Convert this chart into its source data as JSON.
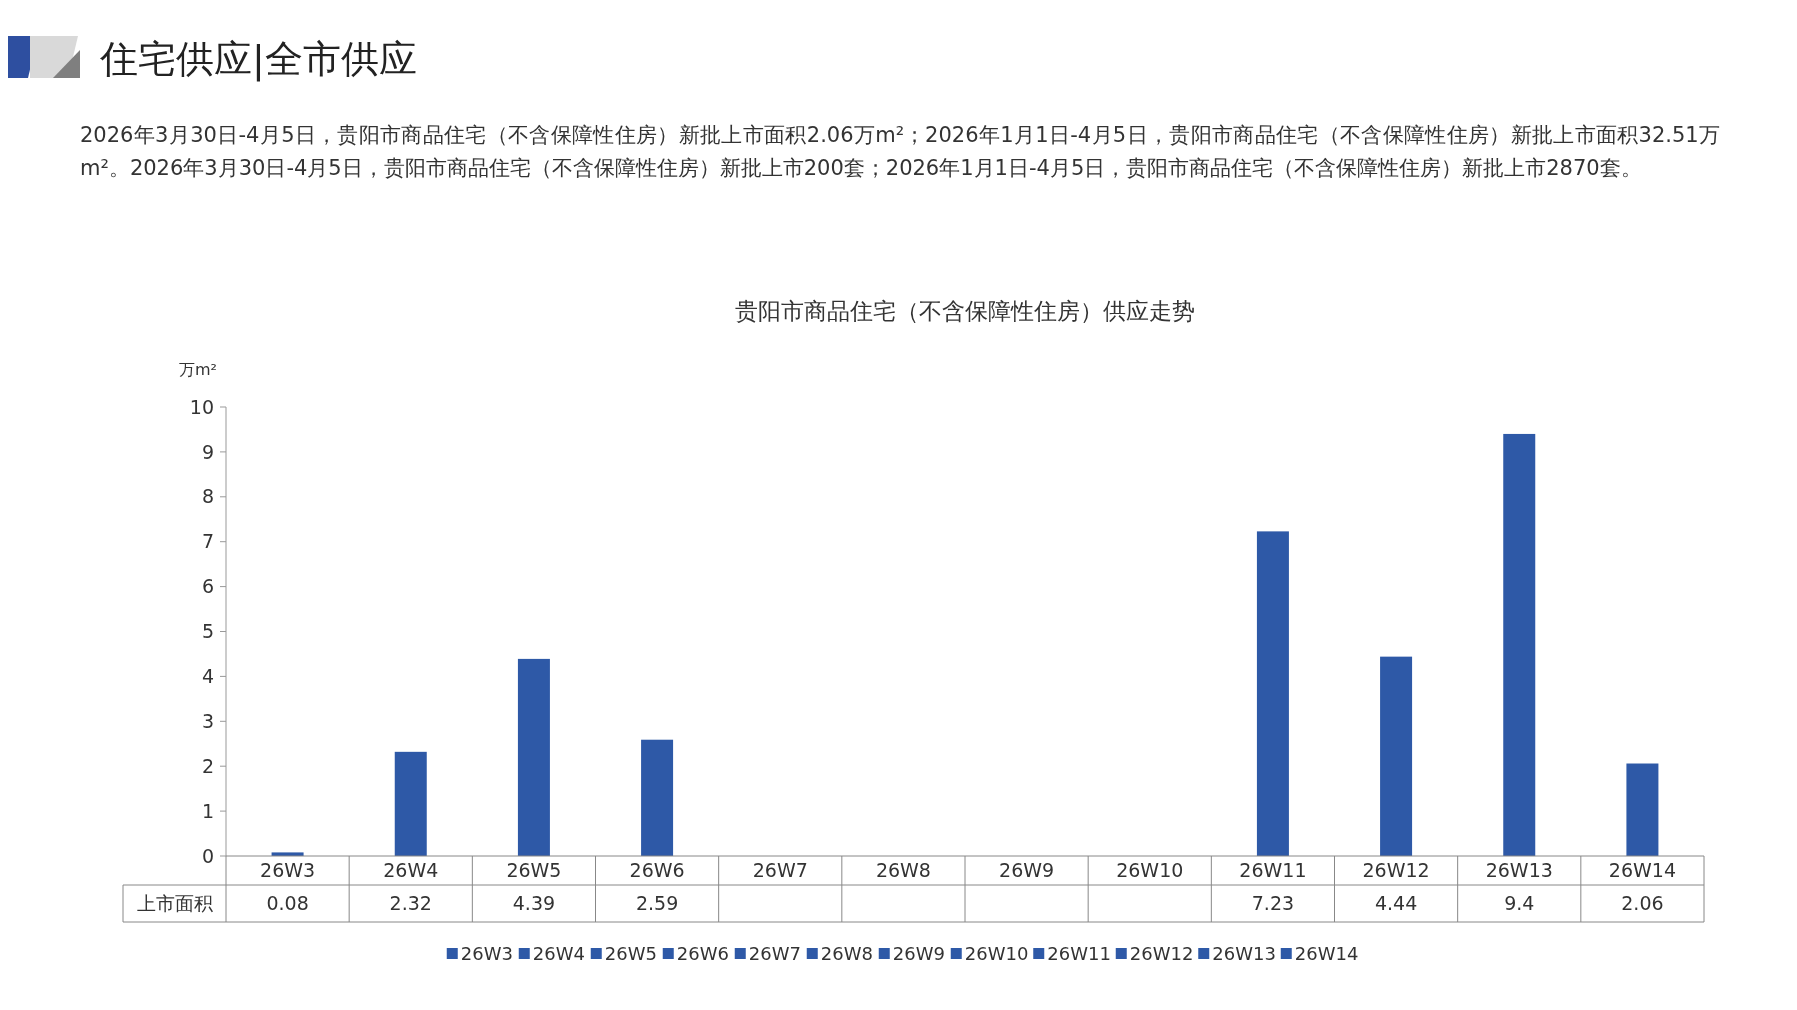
{
  "chart_data": {
    "type": "bar",
    "title": "贵阳市商品住宅（不含保障性住房）供应走势",
    "subtitle": "2026年3月30日-4月5日，贵阳市商品住宅（不含保障性住房）新批上市面积2.06万m²；2026年1月1日-4月5日，贵阳市商品住宅（不含保障性住房）新批上市面积32.51万m²。2026年3月30日-4月5日，贵阳市商品住宅（不含保障性住房）新批上市200套；2026年1月1日-4月5日，贵阳市商品住宅（不含保障性住房）新批上市2870套。",
    "annotations": [
      "住宅供应|全市供应"
    ],
    "ylabel": "万m²",
    "categories": [
      "26W3",
      "26W4",
      "26W5",
      "26W6",
      "26W7",
      "26W8",
      "26W9",
      "26W10",
      "26W11",
      "26W12",
      "26W13",
      "26W14"
    ],
    "series": [
      {
        "name": "上市面积",
        "colors": [
          "#2e59a7",
          "#2e59a7",
          "#2e59a7",
          "#2e59a7",
          "#2e59a7",
          "#2e59a7",
          "#2e59a7",
          "#2e59a7",
          "#2e59a7",
          "#2e59a7",
          "#2e59a7",
          "#2e59a7"
        ],
        "values": [
          0.08,
          2.32,
          4.39,
          2.59,
          null,
          null,
          null,
          null,
          7.23,
          4.44,
          9.4,
          2.06
        ]
      }
    ],
    "ylim": [
      0,
      10
    ],
    "yticks": [
      0,
      1,
      2,
      3,
      4,
      5,
      6,
      7,
      8,
      9,
      10
    ],
    "data_labels": true,
    "legend": "bottom",
    "grid": false
  }
}
